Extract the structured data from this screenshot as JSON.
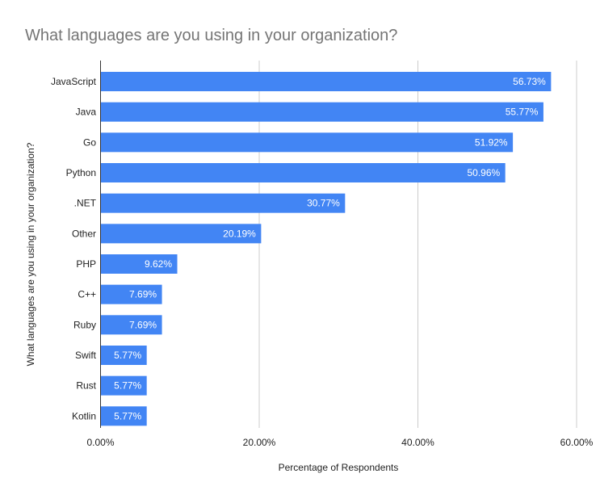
{
  "chart_data": {
    "type": "bar",
    "orientation": "horizontal",
    "title": "What languages are you using in your organization?",
    "xlabel": "Percentage of Respondents",
    "ylabel": "What languages are you using in your organization?",
    "categories": [
      "JavaScript",
      "Java",
      "Go",
      "Python",
      ".NET",
      "Other",
      "PHP",
      "C++",
      "Ruby",
      "Swift",
      "Rust",
      "Kotlin"
    ],
    "values": [
      56.73,
      55.77,
      51.92,
      50.96,
      30.77,
      20.19,
      9.62,
      7.69,
      7.69,
      5.77,
      5.77,
      5.77
    ],
    "data_labels": [
      "56.73%",
      "55.77%",
      "51.92%",
      "50.96%",
      "30.77%",
      "20.19%",
      "9.62%",
      "7.69%",
      "7.69%",
      "5.77%",
      "5.77%",
      "5.77%"
    ],
    "xlim": [
      0,
      60
    ],
    "xticks": [
      0,
      20,
      40,
      60
    ],
    "xtick_labels": [
      "0.00%",
      "20.00%",
      "40.00%",
      "60.00%"
    ],
    "grid": true,
    "legend": "none",
    "bar_color": "#4285f4"
  }
}
